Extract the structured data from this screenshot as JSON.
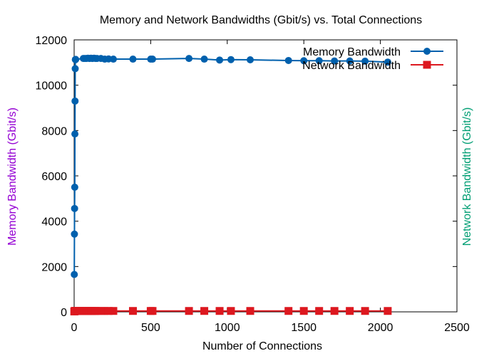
{
  "chart_data": {
    "type": "line",
    "title": "Memory and Network Bandwidths (Gbit/s) vs. Total Connections",
    "xlabel": "Number of Connections",
    "ylabel": "Memory Bandwidth (Gbit/s)",
    "y2label": "Network Bandwidth (Gbit/s)",
    "xlim": [
      0,
      2500
    ],
    "ylim": [
      0,
      12000
    ],
    "xticks": [
      "0",
      "500",
      "1000",
      "1500",
      "2000",
      "2500"
    ],
    "yticks": [
      "0",
      "2000",
      "4000",
      "6000",
      "8000",
      "10000",
      "12000"
    ],
    "grid": false,
    "legend_position": "top-right",
    "colors": {
      "ylabel": "#9400d3",
      "y2label": "#009e73"
    },
    "series": [
      {
        "name": "Memory Bandwidth",
        "color": "#0060ad",
        "marker": "circle",
        "x": [
          1,
          2,
          3,
          4,
          5,
          6,
          7,
          8,
          9,
          10,
          60,
          70,
          80,
          90,
          100,
          110,
          120,
          130,
          140,
          150,
          175,
          200,
          225,
          256,
          384,
          500,
          512,
          750,
          850,
          950,
          1024,
          1150,
          1400,
          1500,
          1600,
          1700,
          1800,
          1900,
          2048
        ],
        "y": [
          1650,
          3430,
          4560,
          5500,
          7850,
          9300,
          10730,
          11130,
          11130,
          11140,
          11180,
          11180,
          11180,
          11190,
          11180,
          11190,
          11180,
          11190,
          11180,
          11180,
          11180,
          11150,
          11160,
          11150,
          11150,
          11150,
          11150,
          11180,
          11150,
          11110,
          11130,
          11120,
          11090,
          11080,
          11080,
          11070,
          11070,
          11060,
          11020
        ]
      },
      {
        "name": "Network Bandwidth",
        "color": "#dd181f",
        "marker": "square",
        "x": [
          1,
          2,
          3,
          4,
          5,
          6,
          7,
          8,
          9,
          10,
          20,
          30,
          40,
          50,
          60,
          70,
          80,
          90,
          100,
          110,
          120,
          130,
          140,
          150,
          175,
          200,
          225,
          256,
          384,
          500,
          512,
          750,
          850,
          950,
          1024,
          1150,
          1400,
          1500,
          1600,
          1700,
          1800,
          1900,
          2048
        ],
        "y": [
          20,
          25,
          30,
          30,
          35,
          35,
          35,
          40,
          40,
          40,
          40,
          40,
          40,
          40,
          40,
          40,
          40,
          40,
          40,
          40,
          40,
          40,
          40,
          40,
          40,
          40,
          40,
          40,
          40,
          40,
          40,
          40,
          40,
          40,
          40,
          40,
          40,
          40,
          40,
          40,
          40,
          40,
          40
        ]
      }
    ]
  }
}
